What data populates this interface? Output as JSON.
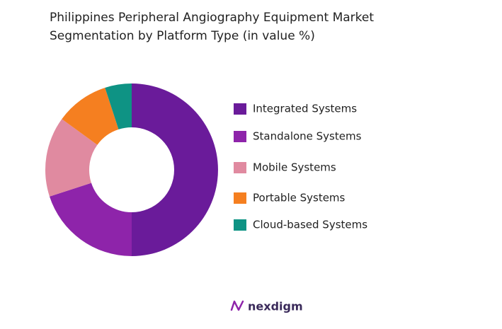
{
  "chart_data": {
    "type": "donut",
    "title": "Philippines Peripheral Angiography Equipment Market Segmentation by Platform Type (in value %)",
    "categories": [
      "Integrated Systems",
      "Standalone Systems",
      "Mobile Systems",
      "Portable Systems",
      "Cloud-based Systems"
    ],
    "values": [
      50,
      20,
      15,
      10,
      5
    ],
    "colors": [
      "#6a1b9a",
      "#8e24aa",
      "#e08aa0",
      "#f57f20",
      "#0e9384"
    ],
    "legend": "right"
  },
  "footer": {
    "logo": "nexdigm"
  }
}
